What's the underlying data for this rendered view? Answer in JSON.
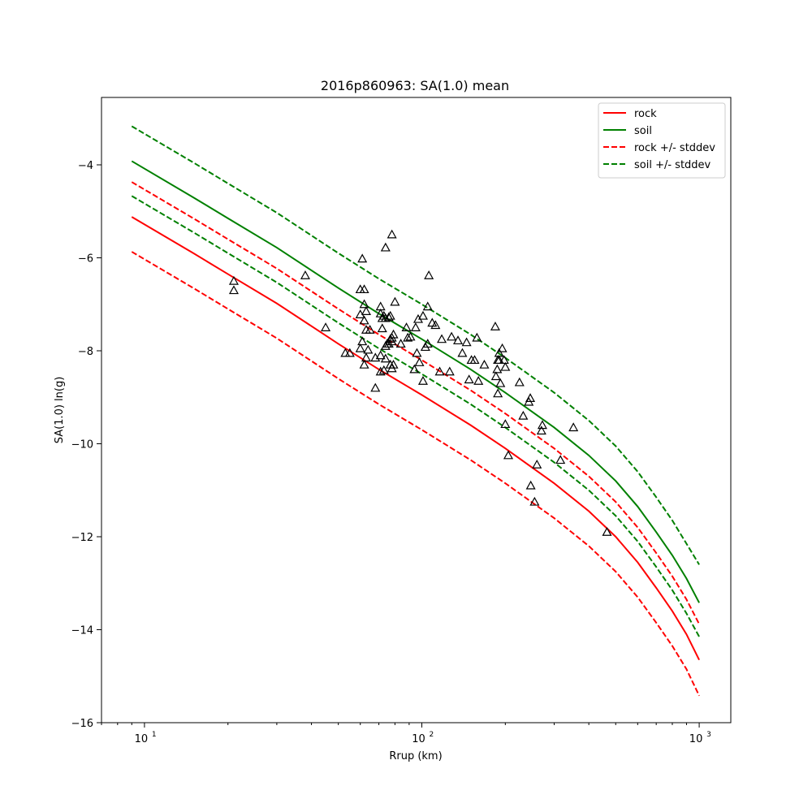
{
  "chart_data": {
    "type": "scatter",
    "title": "2016p860963: SA(1.0) mean",
    "xlabel": "Rrup (km)",
    "ylabel": "SA(1.0) ln(g)",
    "x_scale": "log",
    "xlim": [
      7,
      1300
    ],
    "ylim": [
      -16,
      -2.55
    ],
    "x_tick_labels": [
      {
        "value": 10,
        "base": "10",
        "exp": "1"
      },
      {
        "value": 100,
        "base": "10",
        "exp": "2"
      },
      {
        "value": 1000,
        "base": "10",
        "exp": "3"
      }
    ],
    "y_ticks": [
      -16,
      -14,
      -12,
      -10,
      -8,
      -6,
      -4
    ],
    "y_tick_labels": [
      "−16",
      "−14",
      "−12",
      "−10",
      "−8",
      "−6",
      "−4"
    ],
    "grid": false,
    "legend_position": "top-right",
    "series": [
      {
        "name": "rock",
        "color": "#ff0000",
        "style": "solid",
        "x": [
          9,
          15,
          20,
          30,
          50,
          70,
          100,
          150,
          200,
          300,
          400,
          500,
          600,
          700,
          800,
          900,
          1000
        ],
        "y": [
          -5.12,
          -5.9,
          -6.35,
          -6.98,
          -7.85,
          -8.4,
          -8.95,
          -9.6,
          -10.1,
          -10.85,
          -11.45,
          -12.0,
          -12.55,
          -13.1,
          -13.6,
          -14.1,
          -14.65
        ]
      },
      {
        "name": "soil",
        "color": "#008000",
        "style": "solid",
        "x": [
          9,
          15,
          20,
          30,
          50,
          70,
          100,
          150,
          200,
          300,
          400,
          500,
          600,
          700,
          800,
          900,
          1000
        ],
        "y": [
          -3.92,
          -4.7,
          -5.15,
          -5.78,
          -6.65,
          -7.2,
          -7.75,
          -8.4,
          -8.9,
          -9.65,
          -10.25,
          -10.8,
          -11.35,
          -11.9,
          -12.4,
          -12.9,
          -13.42
        ]
      },
      {
        "name": "rock +/- stddev",
        "color": "#ff0000",
        "style": "dashed",
        "x": [
          9,
          15,
          20,
          30,
          50,
          70,
          100,
          150,
          200,
          300,
          400,
          500,
          600,
          700,
          800,
          900,
          1000
        ],
        "y": [
          -4.37,
          -5.15,
          -5.6,
          -6.23,
          -7.1,
          -7.65,
          -8.2,
          -8.85,
          -9.35,
          -10.1,
          -10.7,
          -11.25,
          -11.8,
          -12.35,
          -12.85,
          -13.35,
          -13.88
        ]
      },
      {
        "name": "rock +/- stddev",
        "color": "#ff0000",
        "style": "dashed",
        "legend": false,
        "x": [
          9,
          15,
          20,
          30,
          50,
          70,
          100,
          150,
          200,
          300,
          400,
          500,
          600,
          700,
          800,
          900,
          1000
        ],
        "y": [
          -5.87,
          -6.65,
          -7.1,
          -7.73,
          -8.6,
          -9.15,
          -9.7,
          -10.35,
          -10.85,
          -11.6,
          -12.2,
          -12.75,
          -13.3,
          -13.85,
          -14.35,
          -14.85,
          -15.42
        ]
      },
      {
        "name": "soil +/- stddev",
        "color": "#008000",
        "style": "dashed",
        "x": [
          9,
          15,
          20,
          30,
          50,
          70,
          100,
          150,
          200,
          300,
          400,
          500,
          600,
          700,
          800,
          900,
          1000
        ],
        "y": [
          -3.17,
          -3.95,
          -4.4,
          -5.03,
          -5.9,
          -6.45,
          -7.0,
          -7.65,
          -8.15,
          -8.9,
          -9.5,
          -10.05,
          -10.6,
          -11.15,
          -11.65,
          -12.15,
          -12.6
        ]
      },
      {
        "name": "soil +/- stddev",
        "color": "#008000",
        "style": "dashed",
        "legend": false,
        "x": [
          9,
          15,
          20,
          30,
          50,
          70,
          100,
          150,
          200,
          300,
          400,
          500,
          600,
          700,
          800,
          900,
          1000
        ],
        "y": [
          -4.67,
          -5.45,
          -5.9,
          -6.53,
          -7.4,
          -7.95,
          -8.5,
          -9.15,
          -9.65,
          -10.4,
          -11.0,
          -11.55,
          -12.1,
          -12.65,
          -13.15,
          -13.65,
          -14.15
        ]
      }
    ],
    "observations": {
      "marker": "triangle",
      "color": "#000000",
      "points": [
        [
          21,
          -6.5
        ],
        [
          21,
          -6.7
        ],
        [
          38,
          -6.38
        ],
        [
          45,
          -7.5
        ],
        [
          53,
          -8.05
        ],
        [
          55,
          -8.05
        ],
        [
          60,
          -6.68
        ],
        [
          60,
          -7.22
        ],
        [
          60,
          -7.95
        ],
        [
          61,
          -7.8
        ],
        [
          61,
          -6.02
        ],
        [
          62,
          -6.68
        ],
        [
          62,
          -7.0
        ],
        [
          62,
          -7.35
        ],
        [
          62,
          -8.3
        ],
        [
          63,
          -7.55
        ],
        [
          63,
          -7.15
        ],
        [
          63,
          -8.15
        ],
        [
          64,
          -7.98
        ],
        [
          65,
          -7.55
        ],
        [
          68,
          -8.8
        ],
        [
          68,
          -8.15
        ],
        [
          71,
          -7.05
        ],
        [
          71,
          -7.2
        ],
        [
          71,
          -8.1
        ],
        [
          71,
          -8.45
        ],
        [
          72,
          -7.3
        ],
        [
          72,
          -7.52
        ],
        [
          73,
          -7.25
        ],
        [
          73,
          -8.42
        ],
        [
          74,
          -5.78
        ],
        [
          74,
          -7.3
        ],
        [
          74,
          -7.9
        ],
        [
          74,
          -8.17
        ],
        [
          75,
          -7.85
        ],
        [
          76,
          -7.85
        ],
        [
          76,
          -7.28
        ],
        [
          77,
          -7.25
        ],
        [
          77,
          -7.75
        ],
        [
          77,
          -8.3
        ],
        [
          78,
          -5.5
        ],
        [
          78,
          -7.72
        ],
        [
          78,
          -7.8
        ],
        [
          78,
          -8.38
        ],
        [
          79,
          -7.65
        ],
        [
          79,
          -8.3
        ],
        [
          80,
          -6.95
        ],
        [
          84,
          -7.85
        ],
        [
          88,
          -7.5
        ],
        [
          89,
          -7.72
        ],
        [
          91,
          -7.7
        ],
        [
          94,
          -8.4
        ],
        [
          95,
          -7.5
        ],
        [
          96,
          -8.05
        ],
        [
          97,
          -7.32
        ],
        [
          98,
          -8.25
        ],
        [
          101,
          -7.25
        ],
        [
          101,
          -8.65
        ],
        [
          103,
          -7.92
        ],
        [
          105,
          -7.85
        ],
        [
          105,
          -7.05
        ],
        [
          106,
          -6.38
        ],
        [
          109,
          -7.4
        ],
        [
          112,
          -7.45
        ],
        [
          116,
          -8.45
        ],
        [
          118,
          -7.75
        ],
        [
          126,
          -8.45
        ],
        [
          128,
          -7.7
        ],
        [
          135,
          -7.78
        ],
        [
          140,
          -8.05
        ],
        [
          145,
          -7.82
        ],
        [
          148,
          -8.62
        ],
        [
          151,
          -8.2
        ],
        [
          155,
          -8.2
        ],
        [
          158,
          -7.72
        ],
        [
          160,
          -8.65
        ],
        [
          168,
          -8.3
        ],
        [
          184,
          -7.48
        ],
        [
          185,
          -8.55
        ],
        [
          187,
          -8.4
        ],
        [
          188,
          -8.2
        ],
        [
          188,
          -8.92
        ],
        [
          190,
          -8.05
        ],
        [
          190,
          -8.2
        ],
        [
          192,
          -8.7
        ],
        [
          195,
          -7.95
        ],
        [
          198,
          -8.2
        ],
        [
          200,
          -9.58
        ],
        [
          200,
          -8.35
        ],
        [
          205,
          -10.25
        ],
        [
          225,
          -8.68
        ],
        [
          232,
          -9.4
        ],
        [
          243,
          -9.1
        ],
        [
          246,
          -9.02
        ],
        [
          247,
          -10.9
        ],
        [
          255,
          -11.25
        ],
        [
          260,
          -10.45
        ],
        [
          270,
          -9.72
        ],
        [
          272,
          -9.6
        ],
        [
          316,
          -10.35
        ],
        [
          352,
          -9.65
        ],
        [
          465,
          -11.9
        ]
      ]
    }
  }
}
